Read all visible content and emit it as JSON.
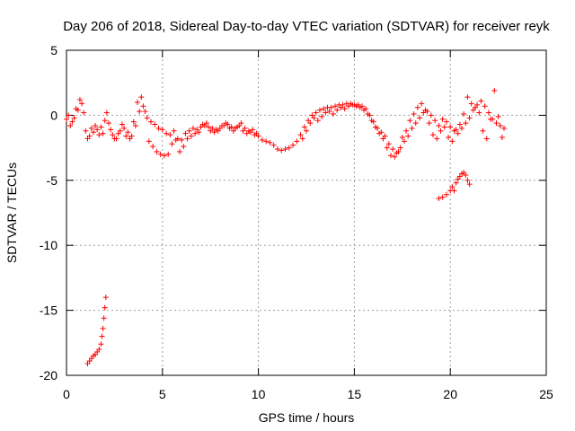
{
  "chart_data": {
    "type": "scatter",
    "title": "Day 206 of 2018, Sidereal Day-to-day VTEC variation (SDTVAR) for receiver reyk",
    "xlabel": "GPS time / hours",
    "ylabel": "SDTVAR / TECUs",
    "xlim": [
      0,
      25
    ],
    "ylim": [
      -20,
      5
    ],
    "xticks": [
      0,
      5,
      10,
      15,
      20,
      25
    ],
    "yticks": [
      -20,
      -15,
      -10,
      -5,
      0,
      5
    ],
    "xtick_labels": [
      "0",
      "5",
      "10",
      "15",
      "20",
      "25"
    ],
    "ytick_labels": [
      "-20",
      "-15",
      "-10",
      "-5",
      "0",
      "5"
    ],
    "grid": true,
    "marker": "+",
    "color": "#ff0000",
    "series": [
      {
        "name": "main",
        "x": [
          0.0,
          0.2,
          0.4,
          0.6,
          0.8,
          1.0,
          1.2,
          1.4,
          1.6,
          1.8,
          2.0,
          2.2,
          2.4,
          2.6,
          2.8,
          3.0,
          3.2,
          3.4,
          3.6,
          3.8,
          4.0,
          4.2,
          4.4,
          4.6,
          4.8,
          5.0,
          5.2,
          5.4,
          5.6,
          5.8,
          6.0,
          6.2,
          6.4,
          6.6,
          6.8,
          7.0,
          7.2,
          7.4,
          7.6,
          7.8,
          8.0,
          8.2,
          8.4,
          8.6,
          8.8,
          9.0,
          9.2,
          9.4,
          9.6,
          9.8,
          10.0,
          10.2,
          10.4,
          10.6,
          10.8,
          11.0,
          11.2,
          11.4,
          11.6,
          11.8,
          12.0,
          12.2,
          12.4,
          12.6,
          12.8,
          13.0,
          13.2,
          13.4,
          13.6,
          13.8,
          14.0,
          14.2,
          14.4,
          14.6,
          14.8,
          15.0,
          15.2,
          15.4,
          15.6,
          15.8,
          16.0,
          16.2,
          16.4,
          16.6,
          16.8,
          17.0,
          17.2,
          17.4,
          17.6,
          17.8,
          18.0,
          18.2,
          18.4,
          18.6,
          18.8,
          19.0,
          19.2,
          19.4,
          19.6,
          19.8,
          20.0,
          20.2,
          20.4,
          20.6,
          20.8,
          21.0,
          21.2,
          21.4,
          21.6,
          21.8,
          22.0,
          22.2,
          22.4,
          22.6,
          22.8
        ],
        "y": [
          -0.3,
          -0.8,
          -0.2,
          0.4,
          0.9,
          -1.2,
          -1.6,
          -1.3,
          -1.1,
          -0.9,
          -0.4,
          -0.6,
          -1.5,
          -1.8,
          -1.2,
          -1.0,
          -1.3,
          -1.6,
          -0.8,
          0.3,
          0.7,
          -0.2,
          -0.5,
          -0.7,
          -1.0,
          -1.1,
          -1.4,
          -1.5,
          -1.2,
          -1.8,
          -1.9,
          -1.4,
          -1.2,
          -1.0,
          -1.1,
          -0.9,
          -0.8,
          -0.9,
          -1.0,
          -1.1,
          -1.0,
          -0.8,
          -0.7,
          -0.9,
          -1.0,
          -0.8,
          -1.2,
          -1.4,
          -1.3,
          -1.5,
          -1.6,
          -1.9,
          -2.0,
          -2.1,
          -2.3,
          -2.6,
          -2.7,
          -2.6,
          -2.5,
          -2.3,
          -2.0,
          -1.5,
          -0.9,
          -0.4,
          0.0,
          0.2,
          0.4,
          0.5,
          0.6,
          0.6,
          0.7,
          0.8,
          0.8,
          0.9,
          0.9,
          0.8,
          0.8,
          0.7,
          0.5,
          0.0,
          -0.5,
          -1.0,
          -1.3,
          -1.6,
          -2.2,
          -2.6,
          -2.9,
          -2.5,
          -2.0,
          -1.6,
          -1.0,
          -0.6,
          -0.2,
          0.2,
          0.3,
          0.0,
          -0.4,
          -0.8,
          -0.3,
          -0.5,
          -0.9,
          -1.2,
          -1.4,
          -1.0,
          -0.6,
          -0.2,
          0.4,
          0.8,
          1.1,
          0.7,
          0.2,
          -0.3,
          -0.6,
          -0.8,
          -1.0
        ]
      },
      {
        "name": "main-secondary",
        "x": [
          0.1,
          0.3,
          0.5,
          0.7,
          0.9,
          1.1,
          1.3,
          1.5,
          1.7,
          1.9,
          2.1,
          2.3,
          2.5,
          2.7,
          2.9,
          3.1,
          3.3,
          3.5,
          3.7,
          3.9,
          4.1,
          4.3,
          4.5,
          4.7,
          4.9,
          5.1,
          5.3,
          5.5,
          5.7,
          5.9,
          6.1,
          6.3,
          6.5,
          6.7,
          6.9,
          7.1,
          7.3,
          7.5,
          7.7,
          7.9,
          8.1,
          8.3,
          8.5,
          8.7,
          8.9,
          9.1,
          9.3,
          9.5,
          9.7,
          9.9,
          12.3,
          12.5,
          12.7,
          12.9,
          13.1,
          13.3,
          13.5,
          13.7,
          13.9,
          14.1,
          14.3,
          14.5,
          14.7,
          14.9,
          15.1,
          15.3,
          15.5,
          15.7,
          15.9,
          16.1,
          16.3,
          16.5,
          16.7,
          16.9,
          17.1,
          17.3,
          17.5,
          17.7,
          17.9,
          18.1,
          18.3,
          18.5,
          18.7,
          18.9,
          19.1,
          19.3,
          19.5,
          19.7,
          19.9,
          20.1,
          20.3,
          20.5,
          20.7,
          20.9,
          21.1,
          21.3,
          21.5,
          21.7,
          21.9,
          22.1,
          22.3,
          22.5,
          22.7
        ],
        "y": [
          0.0,
          -0.5,
          0.5,
          1.2,
          0.2,
          -1.8,
          -1.0,
          -0.8,
          -1.5,
          -1.4,
          0.2,
          -1.1,
          -1.8,
          -1.4,
          -0.7,
          -1.6,
          -1.8,
          -0.5,
          1.0,
          1.4,
          0.3,
          -2.0,
          -2.4,
          -2.8,
          -3.0,
          -3.1,
          -3.0,
          -2.2,
          -1.9,
          -2.8,
          -2.4,
          -1.8,
          -1.6,
          -1.4,
          -1.3,
          -0.7,
          -0.6,
          -1.2,
          -1.3,
          -1.2,
          -0.8,
          -0.6,
          -1.0,
          -1.2,
          -0.9,
          -0.6,
          -1.0,
          -1.2,
          -1.1,
          -1.4,
          -1.8,
          -1.2,
          -0.6,
          -0.2,
          -0.4,
          -0.1,
          0.2,
          0.3,
          0.1,
          0.4,
          0.6,
          0.5,
          0.7,
          0.8,
          0.7,
          0.6,
          0.4,
          0.1,
          -0.4,
          -0.9,
          -1.4,
          -1.8,
          -2.5,
          -3.1,
          -3.2,
          -2.8,
          -1.7,
          -1.2,
          -0.4,
          0.1,
          0.6,
          0.9,
          0.4,
          -0.6,
          -1.5,
          -1.8,
          -1.2,
          -0.9,
          -1.7,
          -2.0,
          -1.1,
          -0.7,
          0.1,
          1.4,
          0.9,
          0.6,
          0.2,
          -1.2,
          -1.8,
          -0.3,
          1.9,
          -0.1,
          -1.7
        ]
      },
      {
        "name": "arc-early",
        "x": [
          1.1,
          1.2,
          1.3,
          1.4,
          1.5,
          1.6,
          1.7,
          1.8,
          1.85,
          1.9,
          1.95,
          2.0,
          2.05
        ],
        "y": [
          -19.1,
          -18.9,
          -18.7,
          -18.5,
          -18.4,
          -18.2,
          -18.0,
          -17.6,
          -17.0,
          -16.4,
          -15.6,
          -14.8,
          -14.0
        ]
      },
      {
        "name": "arc-late",
        "x": [
          19.4,
          19.6,
          19.8,
          20.0,
          20.1,
          20.2,
          20.3,
          20.4,
          20.5,
          20.6,
          20.7,
          20.8,
          20.9,
          21.0
        ],
        "y": [
          -6.4,
          -6.3,
          -6.1,
          -5.8,
          -5.5,
          -5.8,
          -5.2,
          -4.9,
          -4.7,
          -4.5,
          -4.4,
          -4.6,
          -5.0,
          -5.3
        ]
      }
    ]
  }
}
